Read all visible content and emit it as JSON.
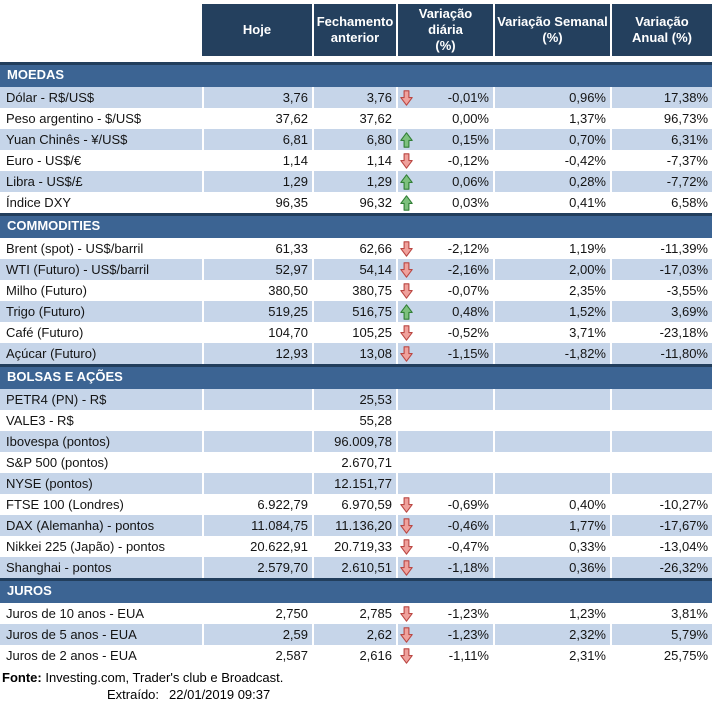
{
  "table": {
    "headers": [
      "Hoje",
      "Fechamento\nanterior",
      "Variação diária\n(%)",
      "Variação Semanal\n(%)",
      "Variação\nAnual (%)"
    ]
  },
  "sections": [
    {
      "title": "MOEDAS",
      "shaded_first": true,
      "rows": [
        {
          "label": "Dólar - R$/US$",
          "hoje": "3,76",
          "fechamento": "3,76",
          "arrow": "down",
          "var_diaria": "-0,01%",
          "var_semanal": "0,96%",
          "var_anual": "17,38%"
        },
        {
          "label": "Peso argentino - $/US$",
          "hoje": "37,62",
          "fechamento": "37,62",
          "arrow": "",
          "var_diaria": "0,00%",
          "var_semanal": "1,37%",
          "var_anual": "96,73%"
        },
        {
          "label": "Yuan Chinês - ¥/US$",
          "hoje": "6,81",
          "fechamento": "6,80",
          "arrow": "up",
          "var_diaria": "0,15%",
          "var_semanal": "0,70%",
          "var_anual": "6,31%"
        },
        {
          "label": "Euro - US$/€",
          "hoje": "1,14",
          "fechamento": "1,14",
          "arrow": "down",
          "var_diaria": "-0,12%",
          "var_semanal": "-0,42%",
          "var_anual": "-7,37%"
        },
        {
          "label": "Libra - US$/£",
          "hoje": "1,29",
          "fechamento": "1,29",
          "arrow": "up",
          "var_diaria": "0,06%",
          "var_semanal": "0,28%",
          "var_anual": "-7,72%"
        },
        {
          "label": "Índice DXY",
          "hoje": "96,35",
          "fechamento": "96,32",
          "arrow": "up",
          "var_diaria": "0,03%",
          "var_semanal": "0,41%",
          "var_anual": "6,58%"
        }
      ]
    },
    {
      "title": "COMMODITIES",
      "shaded_first": false,
      "rows": [
        {
          "label": "Brent (spot) - US$/barril",
          "hoje": "61,33",
          "fechamento": "62,66",
          "arrow": "down",
          "var_diaria": "-2,12%",
          "var_semanal": "1,19%",
          "var_anual": "-11,39%"
        },
        {
          "label": "WTI (Futuro) - US$/barril",
          "hoje": "52,97",
          "fechamento": "54,14",
          "arrow": "down",
          "var_diaria": "-2,16%",
          "var_semanal": "2,00%",
          "var_anual": "-17,03%"
        },
        {
          "label": "Milho (Futuro)",
          "hoje": "380,50",
          "fechamento": "380,75",
          "arrow": "down",
          "var_diaria": "-0,07%",
          "var_semanal": "2,35%",
          "var_anual": "-3,55%"
        },
        {
          "label": "Trigo (Futuro)",
          "hoje": "519,25",
          "fechamento": "516,75",
          "arrow": "up",
          "var_diaria": "0,48%",
          "var_semanal": "1,52%",
          "var_anual": "3,69%"
        },
        {
          "label": "Café (Futuro)",
          "hoje": "104,70",
          "fechamento": "105,25",
          "arrow": "down",
          "var_diaria": "-0,52%",
          "var_semanal": "3,71%",
          "var_anual": "-23,18%"
        },
        {
          "label": "Açúcar (Futuro)",
          "hoje": "12,93",
          "fechamento": "13,08",
          "arrow": "down",
          "var_diaria": "-1,15%",
          "var_semanal": "-1,82%",
          "var_anual": "-11,80%"
        }
      ]
    },
    {
      "title": "BOLSAS E AÇÕES",
      "shaded_first": true,
      "rows": [
        {
          "label": "PETR4 (PN) - R$",
          "hoje": "",
          "fechamento": "25,53",
          "arrow": "",
          "var_diaria": "",
          "var_semanal": "",
          "var_anual": ""
        },
        {
          "label": "VALE3 - R$",
          "hoje": "",
          "fechamento": "55,28",
          "arrow": "",
          "var_diaria": "",
          "var_semanal": "",
          "var_anual": ""
        },
        {
          "label": "Ibovespa (pontos)",
          "hoje": "",
          "fechamento": "96.009,78",
          "arrow": "",
          "var_diaria": "",
          "var_semanal": "",
          "var_anual": ""
        },
        {
          "label": "S&P 500 (pontos)",
          "hoje": "",
          "fechamento": "2.670,71",
          "arrow": "",
          "var_diaria": "",
          "var_semanal": "",
          "var_anual": ""
        },
        {
          "label": "NYSE (pontos)",
          "hoje": "",
          "fechamento": "12.151,77",
          "arrow": "",
          "var_diaria": "",
          "var_semanal": "",
          "var_anual": ""
        },
        {
          "label": "FTSE 100 (Londres)",
          "hoje": "6.922,79",
          "fechamento": "6.970,59",
          "arrow": "down",
          "var_diaria": "-0,69%",
          "var_semanal": "0,40%",
          "var_anual": "-10,27%"
        },
        {
          "label": "DAX (Alemanha) - pontos",
          "hoje": "11.084,75",
          "fechamento": "11.136,20",
          "arrow": "down",
          "var_diaria": "-0,46%",
          "var_semanal": "1,77%",
          "var_anual": "-17,67%"
        },
        {
          "label": "Nikkei 225 (Japão) - pontos",
          "hoje": "20.622,91",
          "fechamento": "20.719,33",
          "arrow": "down",
          "var_diaria": "-0,47%",
          "var_semanal": "0,33%",
          "var_anual": "-13,04%"
        },
        {
          "label": "Shanghai - pontos",
          "hoje": "2.579,70",
          "fechamento": "2.610,51",
          "arrow": "down",
          "var_diaria": "-1,18%",
          "var_semanal": "0,36%",
          "var_anual": "-26,32%"
        }
      ]
    },
    {
      "title": "JUROS",
      "shaded_first": false,
      "rows": [
        {
          "label": "Juros de 10 anos - EUA",
          "hoje": "2,750",
          "fechamento": "2,785",
          "arrow": "down",
          "var_diaria": "-1,23%",
          "var_semanal": "1,23%",
          "var_anual": "3,81%"
        },
        {
          "label": "Juros de 5 anos - EUA",
          "hoje": "2,59",
          "fechamento": "2,62",
          "arrow": "down",
          "var_diaria": "-1,23%",
          "var_semanal": "2,32%",
          "var_anual": "5,79%"
        },
        {
          "label": "Juros de 2 anos - EUA",
          "hoje": "2,587",
          "fechamento": "2,616",
          "arrow": "down",
          "var_diaria": "-1,11%",
          "var_semanal": "2,31%",
          "var_anual": "25,75%"
        }
      ]
    }
  ],
  "footer": {
    "fonte_label": "Fonte:",
    "fonte_text": "Investing.com, Trader's club e Broadcast.",
    "extraido_label": "Extraído:",
    "extraido_value": "22/01/2019 09:37"
  },
  "colors": {
    "header-bg": "#24405E",
    "band-bg": "#3C6493",
    "band-border": "#223E5C",
    "row-shaded": "#C6D5E9",
    "arrow-down-fill": "#F0A19C",
    "arrow-down-stroke": "#BA4743",
    "arrow-up-fill": "#7DC17D",
    "arrow-up-stroke": "#317F36"
  }
}
